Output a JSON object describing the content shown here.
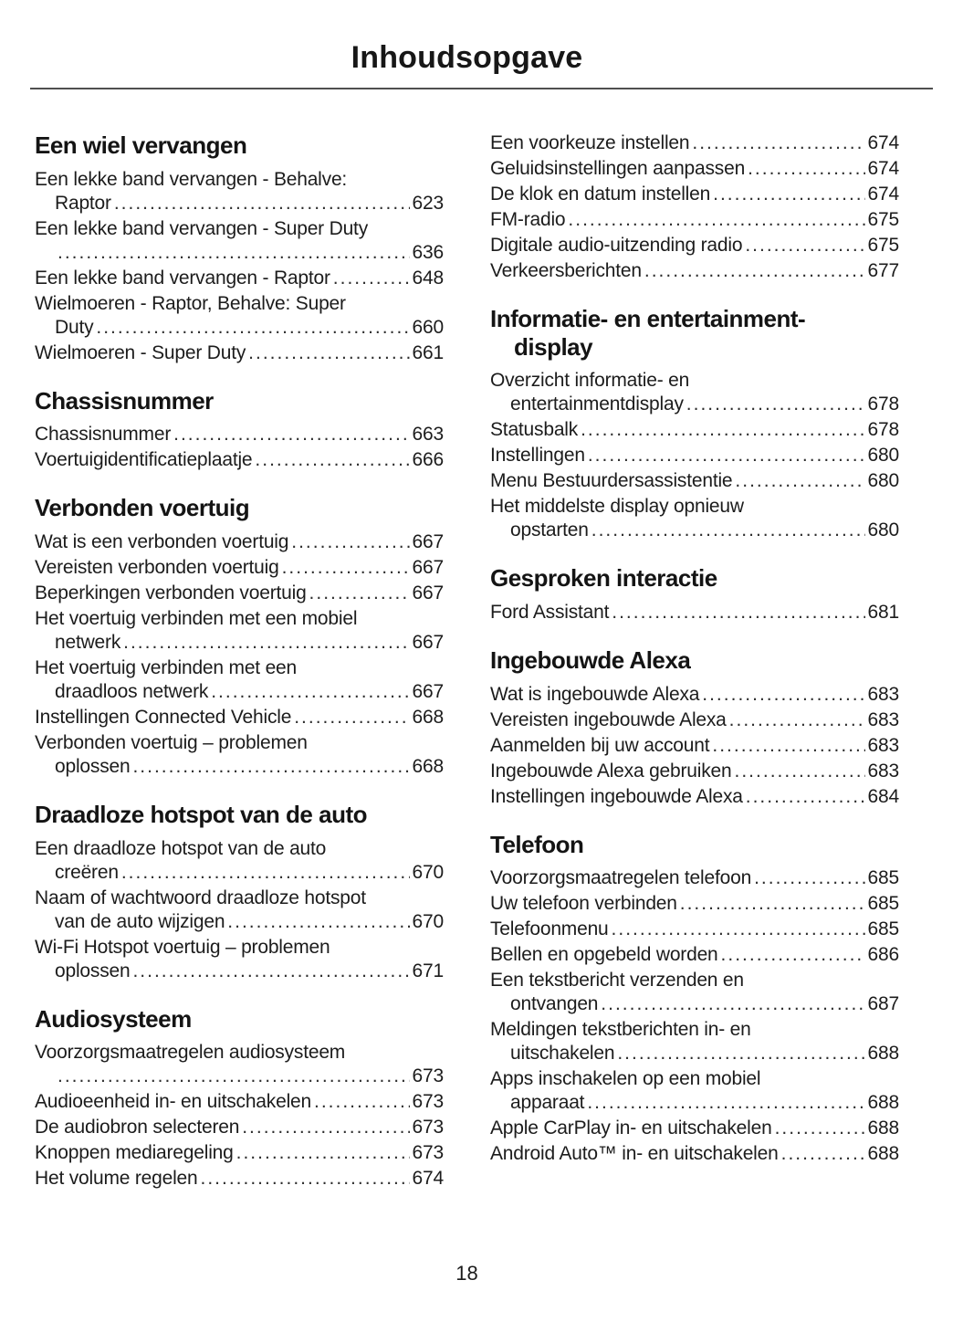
{
  "title": "Inhoudsopgave",
  "page_number": "18",
  "columns": [
    {
      "sections": [
        {
          "heading": [
            "Een wiel vervangen"
          ],
          "entries": [
            {
              "pre": [
                "Een lekke band vervangen - Behalve:"
              ],
              "text": "Raptor",
              "page": "623"
            },
            {
              "pre": [
                "Een lekke band vervangen - Super Duty"
              ],
              "text": "",
              "page": "636"
            },
            {
              "pre": [],
              "text": "Een lekke band vervangen - Raptor",
              "page": "648"
            },
            {
              "pre": [
                "Wielmoeren - Raptor, Behalve: Super"
              ],
              "text": "Duty",
              "page": "660"
            },
            {
              "pre": [],
              "text": "Wielmoeren - Super Duty",
              "page": "661"
            }
          ]
        },
        {
          "heading": [
            "Chassisnummer"
          ],
          "entries": [
            {
              "pre": [],
              "text": "Chassisnummer",
              "page": "663"
            },
            {
              "pre": [],
              "text": "Voertuigidentificatieplaatje",
              "page": "666"
            }
          ]
        },
        {
          "heading": [
            "Verbonden voertuig"
          ],
          "entries": [
            {
              "pre": [],
              "text": "Wat is een verbonden voertuig",
              "page": "667"
            },
            {
              "pre": [],
              "text": "Vereisten verbonden voertuig",
              "page": "667"
            },
            {
              "pre": [],
              "text": "Beperkingen verbonden voertuig",
              "page": "667"
            },
            {
              "pre": [
                "Het voertuig verbinden met een mobiel"
              ],
              "text": "netwerk",
              "page": "667"
            },
            {
              "pre": [
                "Het voertuig verbinden met een"
              ],
              "text": "draadloos netwerk",
              "page": "667"
            },
            {
              "pre": [],
              "text": "Instellingen Connected Vehicle",
              "page": "668"
            },
            {
              "pre": [
                "Verbonden voertuig – problemen"
              ],
              "text": "oplossen",
              "page": "668"
            }
          ]
        },
        {
          "heading": [
            "Draadloze hotspot van de auto"
          ],
          "entries": [
            {
              "pre": [
                "Een draadloze hotspot van de auto"
              ],
              "text": "creëren",
              "page": "670"
            },
            {
              "pre": [
                "Naam of wachtwoord draadloze hotspot"
              ],
              "text": "van de auto wijzigen",
              "page": "670"
            },
            {
              "pre": [
                "Wi-Fi Hotspot voertuig – problemen"
              ],
              "text": "oplossen",
              "page": "671"
            }
          ]
        },
        {
          "heading": [
            "Audiosysteem"
          ],
          "entries": [
            {
              "pre": [
                "Voorzorgsmaatregelen audiosysteem"
              ],
              "text": "",
              "page": "673"
            },
            {
              "pre": [],
              "text": "Audioeenheid in- en uitschakelen",
              "page": "673"
            },
            {
              "pre": [],
              "text": "De audiobron selecteren",
              "page": "673"
            },
            {
              "pre": [],
              "text": "Knoppen mediaregeling",
              "page": "673"
            },
            {
              "pre": [],
              "text": "Het volume regelen",
              "page": "674"
            }
          ]
        }
      ]
    },
    {
      "sections": [
        {
          "heading": [],
          "entries": [
            {
              "pre": [],
              "text": "Een voorkeuze instellen",
              "page": "674"
            },
            {
              "pre": [],
              "text": "Geluidsinstellingen aanpassen",
              "page": "674"
            },
            {
              "pre": [],
              "text": "De klok en datum instellen",
              "page": "674"
            },
            {
              "pre": [],
              "text": "FM-radio",
              "page": "675"
            },
            {
              "pre": [],
              "text": "Digitale audio-uitzending radio",
              "page": "675"
            },
            {
              "pre": [],
              "text": "Verkeersberichten",
              "page": "677"
            }
          ]
        },
        {
          "heading": [
            "Informatie- en entertainment-",
            "display"
          ],
          "entries": [
            {
              "pre": [
                "Overzicht informatie- en"
              ],
              "text": "entertainmentdisplay",
              "page": "678"
            },
            {
              "pre": [],
              "text": "Statusbalk",
              "page": "678"
            },
            {
              "pre": [],
              "text": "Instellingen",
              "page": "680"
            },
            {
              "pre": [],
              "text": "Menu Bestuurdersassistentie",
              "page": "680"
            },
            {
              "pre": [
                "Het middelste display opnieuw"
              ],
              "text": "opstarten",
              "page": "680"
            }
          ]
        },
        {
          "heading": [
            "Gesproken interactie"
          ],
          "entries": [
            {
              "pre": [],
              "text": "Ford Assistant",
              "page": "681"
            }
          ]
        },
        {
          "heading": [
            "Ingebouwde Alexa"
          ],
          "entries": [
            {
              "pre": [],
              "text": "Wat is ingebouwde Alexa",
              "page": "683"
            },
            {
              "pre": [],
              "text": "Vereisten ingebouwde Alexa",
              "page": "683"
            },
            {
              "pre": [],
              "text": "Aanmelden bij uw account",
              "page": "683"
            },
            {
              "pre": [],
              "text": "Ingebouwde Alexa gebruiken",
              "page": "683"
            },
            {
              "pre": [],
              "text": "Instellingen ingebouwde Alexa",
              "page": "684"
            }
          ]
        },
        {
          "heading": [
            "Telefoon"
          ],
          "entries": [
            {
              "pre": [],
              "text": "Voorzorgsmaatregelen telefoon",
              "page": "685"
            },
            {
              "pre": [],
              "text": "Uw telefoon verbinden",
              "page": "685"
            },
            {
              "pre": [],
              "text": "Telefoonmenu",
              "page": "685"
            },
            {
              "pre": [],
              "text": "Bellen en opgebeld worden",
              "page": "686"
            },
            {
              "pre": [
                "Een tekstbericht verzenden en"
              ],
              "text": "ontvangen",
              "page": "687"
            },
            {
              "pre": [
                "Meldingen tekstberichten in- en"
              ],
              "text": "uitschakelen",
              "page": "688"
            },
            {
              "pre": [
                "Apps inschakelen op een mobiel"
              ],
              "text": "apparaat",
              "page": "688"
            },
            {
              "pre": [],
              "text": "Apple CarPlay in- en uitschakelen",
              "page": "688"
            },
            {
              "pre": [],
              "text": "Android Auto™ in- en uitschakelen",
              "page": "688"
            }
          ]
        }
      ]
    }
  ]
}
